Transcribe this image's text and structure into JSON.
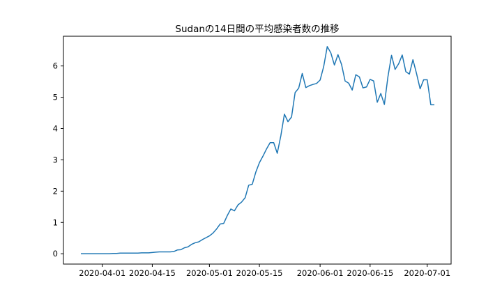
{
  "chart_data": {
    "type": "line",
    "title": "Sudanの14日間の平均感染者数の推移",
    "xlabel": "",
    "ylabel": "",
    "x_start": "2020-03-26",
    "x_tick_labels": [
      "2020-04-01",
      "2020-04-15",
      "2020-05-01",
      "2020-05-15",
      "2020-06-01",
      "2020-06-15",
      "2020-07-01"
    ],
    "y_ticks": [
      0,
      1,
      2,
      3,
      4,
      5,
      6
    ],
    "ylim": [
      -0.33,
      6.95
    ],
    "grid": false,
    "line_color": "#1f77b4",
    "series": [
      {
        "values": [
          0.0,
          0.0,
          0.0,
          0.0,
          0.0,
          0.0,
          0.0,
          0.0,
          0.0,
          0.01,
          0.01,
          0.02,
          0.02,
          0.02,
          0.02,
          0.02,
          0.02,
          0.03,
          0.03,
          0.03,
          0.04,
          0.05,
          0.06,
          0.06,
          0.06,
          0.06,
          0.07,
          0.12,
          0.13,
          0.19,
          0.22,
          0.3,
          0.35,
          0.38,
          0.45,
          0.51,
          0.57,
          0.66,
          0.79,
          0.95,
          0.97,
          1.22,
          1.43,
          1.37,
          1.56,
          1.65,
          1.79,
          2.19,
          2.22,
          2.61,
          2.91,
          3.12,
          3.35,
          3.55,
          3.55,
          3.21,
          3.77,
          4.46,
          4.22,
          4.37,
          5.15,
          5.29,
          5.76,
          5.31,
          5.37,
          5.41,
          5.44,
          5.55,
          5.98,
          6.62,
          6.42,
          6.03,
          6.36,
          6.05,
          5.52,
          5.45,
          5.23,
          5.72,
          5.65,
          5.3,
          5.33,
          5.57,
          5.52,
          4.84,
          5.12,
          4.77,
          5.66,
          6.34,
          5.89,
          6.07,
          6.35,
          5.82,
          5.74,
          6.2,
          5.76,
          5.27,
          5.56,
          5.56,
          4.76,
          4.76
        ]
      }
    ]
  }
}
